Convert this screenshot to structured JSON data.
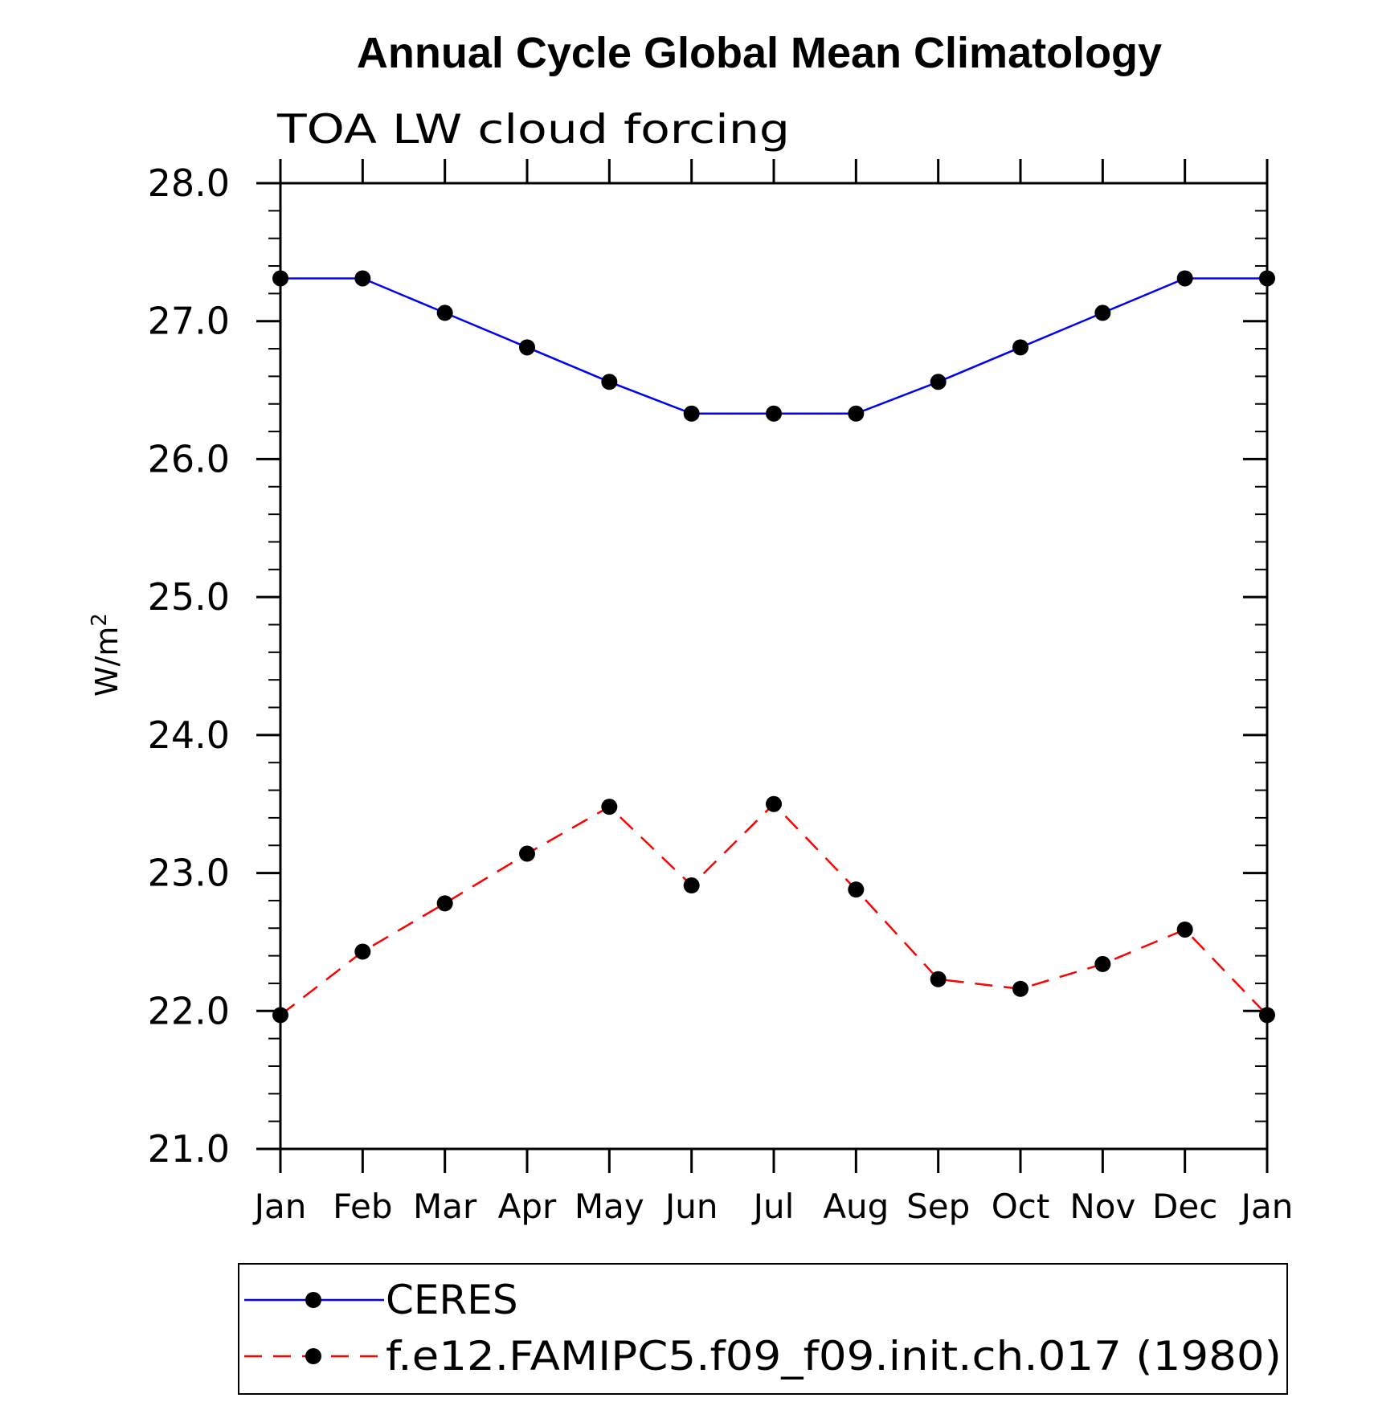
{
  "chart_data": {
    "type": "line",
    "title": "Annual Cycle Global Mean Climatology",
    "subtitle": "TOA LW cloud forcing",
    "xlabel": "",
    "ylabel": "W/m",
    "ylabel_superscript": "2",
    "categories": [
      "Jan",
      "Feb",
      "Mar",
      "Apr",
      "May",
      "Jun",
      "Jul",
      "Aug",
      "Sep",
      "Oct",
      "Nov",
      "Dec",
      "Jan"
    ],
    "ylim": [
      21.0,
      28.0
    ],
    "yticks": [
      "21.0",
      "22.0",
      "23.0",
      "24.0",
      "25.0",
      "26.0",
      "27.0",
      "28.0"
    ],
    "y_minor_step": 0.2,
    "grid": false,
    "legend_position": "bottom",
    "series": [
      {
        "name": "CERES",
        "color": "#0000ff",
        "dash": "solid",
        "marker": "filled-circle",
        "marker_color": "#000000",
        "values": [
          27.31,
          27.31,
          27.06,
          26.81,
          26.56,
          26.33,
          26.33,
          26.33,
          26.56,
          26.81,
          27.06,
          27.31,
          27.31
        ]
      },
      {
        "name": "f.e12.FAMIPC5.f09_f09.init.ch.017 (1980)",
        "color": "#ff0000",
        "dash": "dashed",
        "marker": "filled-circle",
        "marker_color": "#000000",
        "values": [
          21.97,
          22.43,
          22.78,
          23.14,
          23.48,
          22.91,
          23.5,
          22.88,
          22.23,
          22.16,
          22.34,
          22.59,
          21.97
        ]
      }
    ]
  }
}
